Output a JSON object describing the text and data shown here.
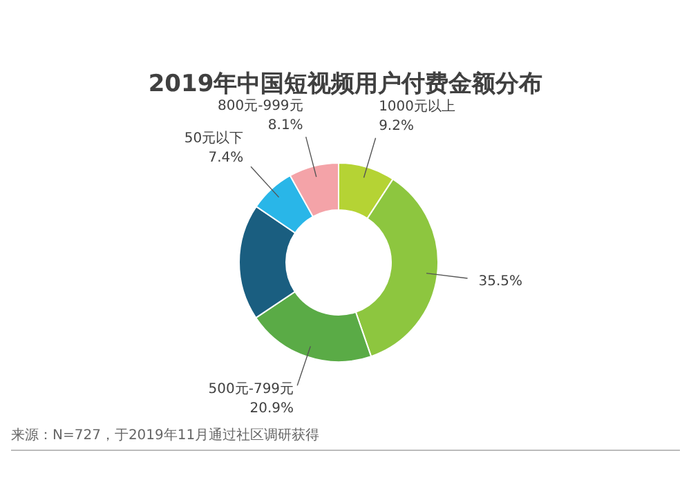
{
  "chart_data": {
    "type": "donut",
    "title": "2019年中国短视频用户付费金额分布",
    "categories": [
      "1000元以上",
      null,
      "500元-799元",
      null,
      "50元以下",
      "800元-999元"
    ],
    "values": [
      9.2,
      35.5,
      20.9,
      18.9,
      7.4,
      8.1
    ],
    "value_labels": [
      "9.2%",
      "35.5%",
      "20.9%",
      null,
      "7.4%",
      "8.1%"
    ],
    "colors": [
      "#b5d334",
      "#8dc63f",
      "#5aab46",
      "#1a5e80",
      "#29b6e8",
      "#f4a3a8"
    ],
    "annotations": [
      "来源：N=727，于2019年11月通过社区调研获得"
    ]
  }
}
